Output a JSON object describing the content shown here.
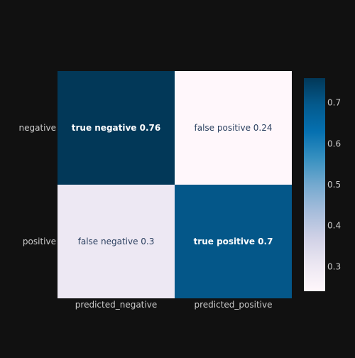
{
  "chart_data": {
    "type": "heatmap",
    "title": "",
    "xlabel": "",
    "ylabel": "",
    "x_categories": [
      "predicted_negative",
      "predicted_positive"
    ],
    "y_categories": [
      "negative",
      "positive"
    ],
    "values": [
      [
        0.76,
        0.24
      ],
      [
        0.3,
        0.7
      ]
    ],
    "cell_labels": [
      [
        "true negative 0.76",
        "false positive 0.24"
      ],
      [
        "false negative 0.3",
        "true positive 0.7"
      ]
    ],
    "colorscale": "PuBu",
    "zlim": [
      0.24,
      0.76
    ],
    "colorbar": {
      "ticks": [
        0.3,
        0.4,
        0.5,
        0.6,
        0.7
      ],
      "tick_labels": [
        "0.3",
        "0.4",
        "0.5",
        "0.6",
        "0.7"
      ]
    },
    "colors": {
      "background": "#111111",
      "text": "#cccccc",
      "scale": [
        "#fff7fb",
        "#ece7f2",
        "#d0d1e6",
        "#a6bddb",
        "#74a9cf",
        "#3690c0",
        "#0570b0",
        "#045a8d",
        "#023858"
      ]
    }
  }
}
